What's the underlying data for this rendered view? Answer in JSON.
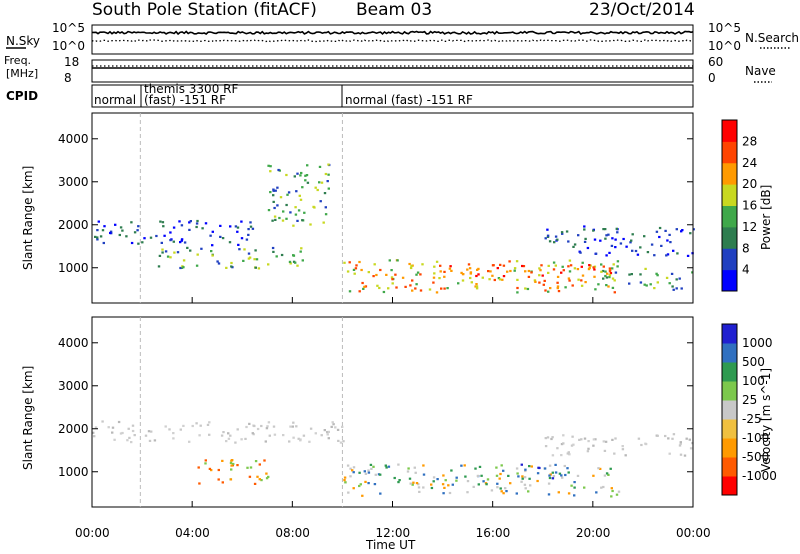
{
  "header": {
    "station": "South Pole Station (fitACF)",
    "beam": "Beam 03",
    "date": "23/Oct/2014"
  },
  "noise_panel": {
    "left_label": "N.Sky",
    "right_label": "N.Search",
    "left_ticks": [
      "10^5",
      "10^0"
    ],
    "right_ticks": [
      "10^5",
      "10^0"
    ]
  },
  "freq_panel": {
    "left_label_1": "Freq.",
    "left_label_2": "[MHz]",
    "left_ticks": [
      "18",
      "8"
    ],
    "right_label": "Nave",
    "right_ticks": [
      "60",
      "0"
    ]
  },
  "cpid_panel": {
    "label": "CPID",
    "segments": [
      {
        "start_hour": 0.0,
        "text": "normal"
      },
      {
        "start_hour": 1.93,
        "text": "themis 3300 RF",
        "text2": "(fast) -151 RF"
      },
      {
        "start_hour": 10.0,
        "text": "normal (fast) -151 RF"
      }
    ]
  },
  "time_axis": {
    "label": "Time UT",
    "ticks": [
      "00:00",
      "04:00",
      "08:00",
      "12:00",
      "16:00",
      "20:00",
      "00:00"
    ]
  },
  "chart_data": [
    {
      "type": "heatmap",
      "name": "power",
      "ylabel": "Slant Range [km]",
      "ylim": [
        180,
        4600
      ],
      "xlim": [
        0,
        24
      ],
      "yticks": [
        1000,
        2000,
        3000,
        4000
      ],
      "colorbar": {
        "label": "Power [dB]",
        "ticks": [
          "28",
          "24",
          "20",
          "16",
          "12",
          "8",
          "4"
        ],
        "colors": [
          "#0000ff",
          "#2040c0",
          "#2e7d4f",
          "#3fa84a",
          "#c8d820",
          "#ff9a00",
          "#ff4400",
          "#ff0000"
        ]
      },
      "features": [
        {
          "t0": 0.0,
          "t1": 6.5,
          "r0": 1550,
          "r1": 2150,
          "level": "low"
        },
        {
          "t0": 2.5,
          "t1": 8.5,
          "r0": 1000,
          "r1": 1500,
          "level": "medium"
        },
        {
          "t0": 7.0,
          "t1": 9.5,
          "r0": 2000,
          "r1": 3500,
          "level": "medium"
        },
        {
          "t0": 10.0,
          "t1": 21.0,
          "r0": 450,
          "r1": 1200,
          "level": "high"
        },
        {
          "t0": 14.0,
          "t1": 21.0,
          "r0": 800,
          "r1": 1100,
          "level": "very-high"
        },
        {
          "t0": 18.0,
          "t1": 24.0,
          "r0": 1300,
          "r1": 2000,
          "level": "low"
        },
        {
          "t0": 20.0,
          "t1": 24.0,
          "r0": 500,
          "r1": 1000,
          "level": "medium"
        }
      ]
    },
    {
      "type": "heatmap",
      "name": "velocity",
      "ylabel": "Slant Range [km]",
      "ylim": [
        180,
        4600
      ],
      "xlim": [
        0,
        24
      ],
      "yticks": [
        1000,
        2000,
        3000,
        4000
      ],
      "colorbar": {
        "label": "Velocity [m s^-1]",
        "ticks": [
          "1000",
          "500",
          "100",
          "25",
          "-25",
          "-100",
          "-500",
          "-1000"
        ],
        "colors": [
          "#ff0000",
          "#ff5a00",
          "#ff9a00",
          "#f0c040",
          "#c8c8c8",
          "#7cc84c",
          "#2e9a50",
          "#3070c0",
          "#2020d0"
        ]
      },
      "features": [
        {
          "t0": 0.0,
          "t1": 10.0,
          "r0": 1700,
          "r1": 2200,
          "level": "ground-scatter"
        },
        {
          "t0": 4.0,
          "t1": 7.0,
          "r0": 700,
          "r1": 1300,
          "level": "negative"
        },
        {
          "t0": 10.0,
          "t1": 21.0,
          "r0": 450,
          "r1": 1200,
          "level": "mixed"
        },
        {
          "t0": 17.0,
          "t1": 19.0,
          "r0": 800,
          "r1": 1200,
          "level": "positive"
        },
        {
          "t0": 18.0,
          "t1": 24.0,
          "r0": 1400,
          "r1": 1900,
          "level": "ground-scatter"
        }
      ]
    }
  ]
}
